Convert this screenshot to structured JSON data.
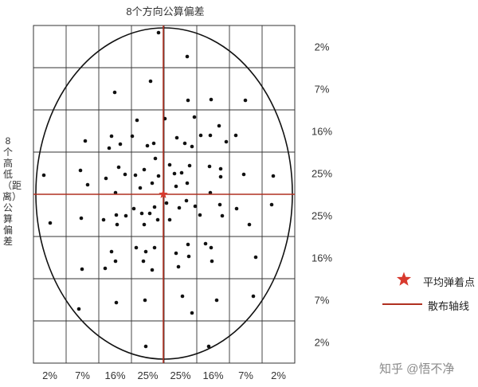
{
  "header": {
    "title": "8个方向公算偏差"
  },
  "side": {
    "title": "8个高低（距离）公算偏差"
  },
  "grid": {
    "columns": 8,
    "rows": 8,
    "column_percents": [
      "2%",
      "7%",
      "16%",
      "25%",
      "25%",
      "16%",
      "7%",
      "2%"
    ],
    "row_percents": [
      "2%",
      "7%",
      "16%",
      "25%",
      "25%",
      "16%",
      "7%",
      "2%"
    ]
  },
  "legend": {
    "mean_point_label": "平均弹着点",
    "axis_label": "散布轴线",
    "mean_point_color": "#d83a2e",
    "axis_color": "#b03020",
    "mean_point_icon": "star-icon"
  },
  "colors": {
    "grid": "#333333",
    "dot": "#111111",
    "ellipse": "#111111"
  },
  "watermark": {
    "text": "知乎 @悟不净"
  }
}
